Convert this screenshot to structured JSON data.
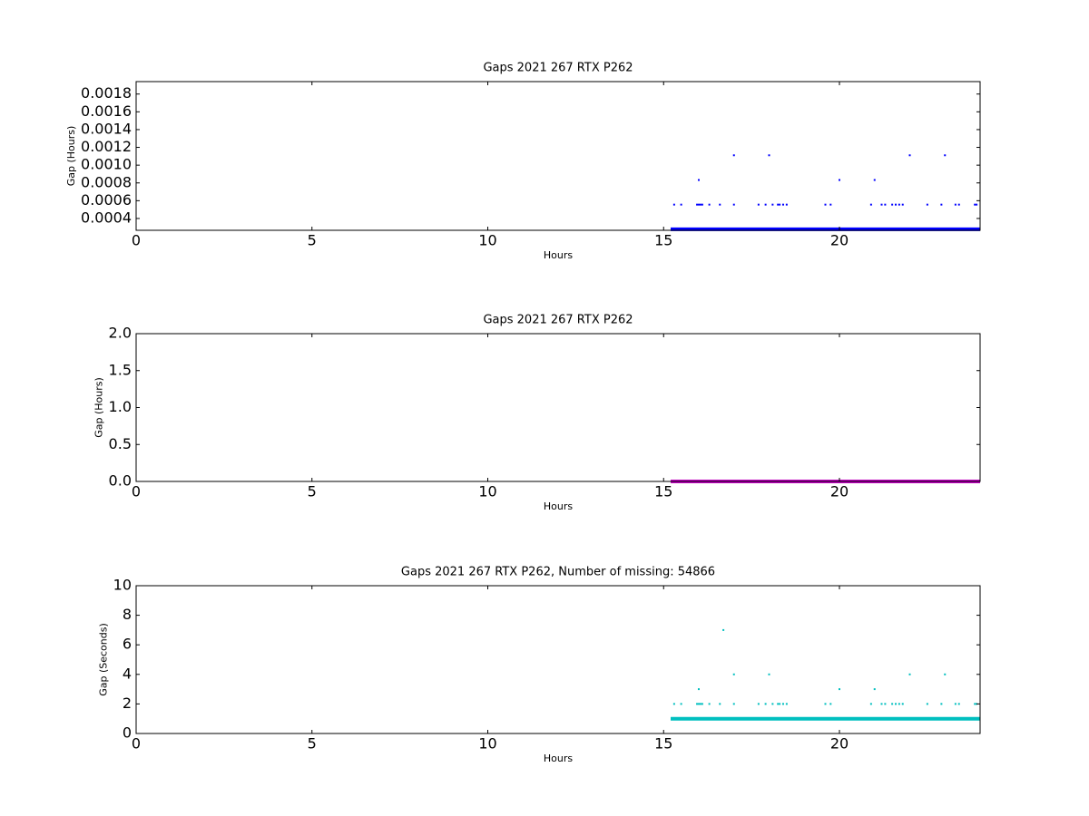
{
  "chart_data": [
    {
      "type": "scatter",
      "title": "Gaps 2021 267 RTX  P262",
      "x_label": "Hours",
      "y_label": "Gap (Hours)",
      "xlim": [
        0,
        24
      ],
      "xticks": [
        0,
        5,
        10,
        15,
        20
      ],
      "ylim": [
        0.000267,
        0.00194
      ],
      "yticks": [
        0.0004,
        0.0006,
        0.0008,
        {
          "value": 0.001,
          "label": "0.0010"
        },
        0.0012,
        0.0014,
        0.0016,
        0.0018
      ],
      "series": [
        {
          "style": "line",
          "color": "#0000ff",
          "x": [
            15.2,
            15.6,
            16.0,
            16.4,
            16.8,
            17.2,
            17.6,
            18.0,
            18.4,
            18.8,
            19.2,
            19.6,
            20.0,
            20.4,
            20.8,
            21.2,
            21.6,
            22.0,
            22.4,
            22.8,
            23.2,
            23.6,
            24.0
          ],
          "values": [
            0.000278,
            0.000278,
            0.000278,
            0.000278,
            0.000278,
            0.000278,
            0.000278,
            0.000278,
            0.000278,
            0.000278,
            0.000278,
            0.000278,
            0.000278,
            0.000278,
            0.000278,
            0.000278,
            0.000278,
            0.000278,
            0.000278,
            0.000278,
            0.000278,
            0.000278,
            0.000278
          ]
        },
        {
          "style": "points",
          "color": "#0000ff",
          "x": [
            15.3,
            15.5,
            15.95,
            16.0,
            16.05,
            16.1,
            16.3,
            16.6,
            17.0,
            17.7,
            17.9,
            18.1,
            18.25,
            18.3,
            18.4,
            18.5,
            19.6,
            19.75,
            20.9,
            21.2,
            21.3,
            21.5,
            21.6,
            21.7,
            21.8,
            22.5,
            22.9,
            23.3,
            23.4,
            23.85,
            23.9,
            16.0,
            20.0,
            21.0,
            17.0,
            18.0,
            22.0,
            23.0
          ],
          "values": [
            0.000556,
            0.000556,
            0.000556,
            0.000556,
            0.000556,
            0.000556,
            0.000556,
            0.000556,
            0.000556,
            0.000556,
            0.000556,
            0.000556,
            0.000556,
            0.000556,
            0.000556,
            0.000556,
            0.000556,
            0.000556,
            0.000556,
            0.000556,
            0.000556,
            0.000556,
            0.000556,
            0.000556,
            0.000556,
            0.000556,
            0.000556,
            0.000556,
            0.000556,
            0.000556,
            0.000556,
            0.000833,
            0.000833,
            0.000833,
            0.001111,
            0.001111,
            0.001111,
            0.001111
          ]
        }
      ]
    },
    {
      "type": "scatter",
      "title": "Gaps 2021 267 RTX  P262",
      "x_label": "Hours",
      "y_label": "Gap (Hours)",
      "xlim": [
        0,
        24
      ],
      "xticks": [
        0,
        5,
        10,
        15,
        20
      ],
      "ylim": [
        0,
        2
      ],
      "yticks": [
        {
          "value": 0,
          "label": "0.0"
        },
        0.5,
        {
          "value": 1,
          "label": "1.0"
        },
        1.5,
        {
          "value": 2,
          "label": "2.0"
        }
      ],
      "series": [
        {
          "style": "line",
          "color": "#bf00bf",
          "x": [
            15.2,
            15.6,
            16.0,
            16.4,
            16.8,
            17.2,
            17.6,
            18.0,
            18.4,
            18.8,
            19.2,
            19.6,
            20.0,
            20.4,
            20.8,
            21.2,
            21.6,
            22.0,
            22.4,
            22.8,
            23.2,
            23.6,
            24.0
          ],
          "values": [
            0.000278,
            0.000278,
            0.000278,
            0.000278,
            0.000278,
            0.000278,
            0.000278,
            0.000278,
            0.000278,
            0.000278,
            0.000278,
            0.000278,
            0.000278,
            0.000278,
            0.000278,
            0.000278,
            0.000278,
            0.000278,
            0.000278,
            0.000278,
            0.000278,
            0.000278,
            0.000278
          ]
        },
        {
          "style": "points",
          "color": "#bf00bf",
          "x": [
            15.3,
            15.5,
            15.95,
            16.0,
            16.05,
            16.1,
            16.3,
            16.6,
            17.0,
            17.7,
            17.9,
            18.1,
            18.25,
            18.3,
            18.4,
            18.5,
            19.6,
            19.75,
            20.9,
            21.2,
            21.3,
            21.5,
            21.6,
            21.7,
            21.8,
            22.5,
            22.9,
            23.3,
            23.4,
            23.85,
            23.9,
            16.0,
            20.0,
            21.0,
            17.0,
            18.0,
            22.0,
            23.0,
            16.7
          ],
          "values": [
            0.000556,
            0.000556,
            0.000556,
            0.000556,
            0.000556,
            0.000556,
            0.000556,
            0.000556,
            0.000556,
            0.000556,
            0.000556,
            0.000556,
            0.000556,
            0.000556,
            0.000556,
            0.000556,
            0.000556,
            0.000556,
            0.000556,
            0.000556,
            0.000556,
            0.000556,
            0.000556,
            0.000556,
            0.000556,
            0.000556,
            0.000556,
            0.000556,
            0.000556,
            0.000556,
            0.000556,
            0.000833,
            0.000833,
            0.000833,
            0.001111,
            0.001111,
            0.001111,
            0.001111,
            0.001944
          ]
        }
      ]
    },
    {
      "type": "scatter",
      "title": "Gaps 2021 267 RTX  P262, Number of missing: 54866",
      "x_label": "Hours",
      "y_label": "Gap (Seconds)",
      "xlim": [
        0,
        24
      ],
      "xticks": [
        0,
        5,
        10,
        15,
        20
      ],
      "ylim": [
        0,
        10
      ],
      "yticks": [
        0,
        2,
        4,
        6,
        8,
        10
      ],
      "series": [
        {
          "style": "line",
          "color": "#00bfbf",
          "x": [
            15.2,
            15.6,
            16.0,
            16.4,
            16.8,
            17.2,
            17.6,
            18.0,
            18.4,
            18.8,
            19.2,
            19.6,
            20.0,
            20.4,
            20.8,
            21.2,
            21.6,
            22.0,
            22.4,
            22.8,
            23.2,
            23.6,
            24.0
          ],
          "values": [
            1,
            1,
            1,
            1,
            1,
            1,
            1,
            1,
            1,
            1,
            1,
            1,
            1,
            1,
            1,
            1,
            1,
            1,
            1,
            1,
            1,
            1,
            1
          ]
        },
        {
          "style": "points",
          "color": "#00bfbf",
          "x": [
            15.3,
            15.5,
            15.95,
            16.0,
            16.05,
            16.1,
            16.3,
            16.6,
            17.0,
            17.7,
            17.9,
            18.1,
            18.25,
            18.3,
            18.4,
            18.5,
            19.6,
            19.75,
            20.9,
            21.2,
            21.3,
            21.5,
            21.6,
            21.7,
            21.8,
            22.5,
            22.9,
            23.3,
            23.4,
            23.85,
            23.9,
            16.0,
            20.0,
            21.0,
            17.0,
            18.0,
            22.0,
            23.0,
            16.7
          ],
          "values": [
            2,
            2,
            2,
            2,
            2,
            2,
            2,
            2,
            2,
            2,
            2,
            2,
            2,
            2,
            2,
            2,
            2,
            2,
            2,
            2,
            2,
            2,
            2,
            2,
            2,
            2,
            2,
            2,
            2,
            2,
            2,
            3,
            3,
            3,
            4,
            4,
            4,
            4,
            7
          ]
        }
      ]
    }
  ]
}
